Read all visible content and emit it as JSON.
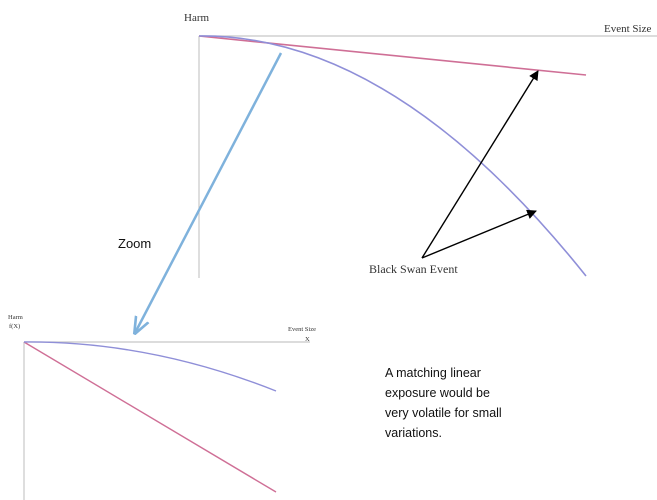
{
  "top_chart": {
    "y_axis_label": "Harm",
    "x_axis_label": "Event Size"
  },
  "zoom_label": "Zoom",
  "black_swan_label": "Black Swan Event",
  "bottom_chart": {
    "y_axis_label": "Harm",
    "y_axis_sublabel": "f(X)",
    "x_axis_label": "Event Size",
    "x_axis_sublabel": "X"
  },
  "note": {
    "lines": [
      "A matching linear",
      "exposure would be",
      "very volatile for small",
      "variations."
    ]
  },
  "colors": {
    "axis": "#c8c8c8",
    "curve": "#8f8fd8",
    "linear": "#cf6f96",
    "zoom_arrow": "#7fb2dc",
    "annotation_arrow": "#000000"
  }
}
